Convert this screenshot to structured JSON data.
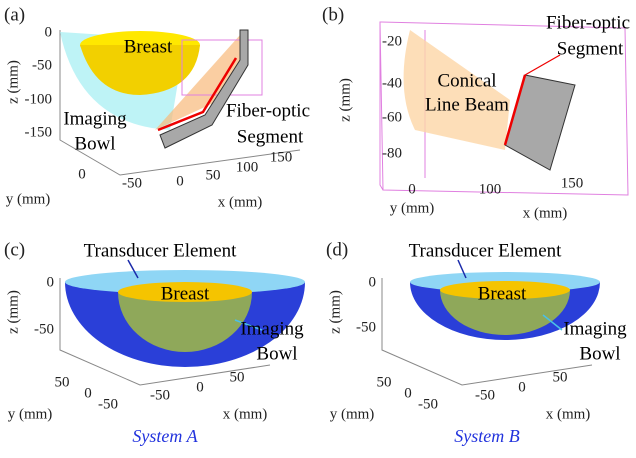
{
  "panels": [
    {
      "label": "(a)",
      "annotations": {
        "breast": "Breast",
        "bowl": [
          "Imaging",
          "Bowl"
        ],
        "segment": [
          "Fiber-optic",
          "Segment"
        ]
      },
      "z_label": "z (mm)",
      "z_ticks": [
        0,
        -50,
        -100,
        -150
      ],
      "y_label": "y (mm)",
      "y_ticks": [
        0
      ],
      "x_label": "x (mm)",
      "x_ticks": [
        -50,
        0,
        50,
        100,
        150
      ]
    },
    {
      "label": "(b)",
      "annotations": {
        "beam": [
          "Conical",
          "Line Beam"
        ],
        "segment": [
          "Fiber-optic",
          "Segment"
        ]
      },
      "z_label": "z (mm)",
      "z_ticks": [
        -20,
        -40,
        -60,
        -80
      ],
      "y_label": "y (mm)",
      "y_ticks": [
        0
      ],
      "x_label": "x (mm)",
      "x_ticks": [
        100,
        150
      ]
    },
    {
      "label": "(c)",
      "annotations": {
        "element": "Transducer Element",
        "breast": "Breast",
        "bowl": [
          "Imaging",
          "Bowl"
        ]
      },
      "z_label": "z (mm)",
      "z_ticks": [
        0,
        -50
      ],
      "y_label": "y (mm)",
      "y_ticks": [
        50,
        0,
        -50
      ],
      "x_label": "x (mm)",
      "x_ticks": [
        -50,
        0,
        50
      ],
      "caption": "System A"
    },
    {
      "label": "(d)",
      "annotations": {
        "element": "Transducer Element",
        "breast": "Breast",
        "bowl": [
          "Imaging",
          "Bowl"
        ]
      },
      "z_label": "z (mm)",
      "z_ticks": [
        0,
        -50
      ],
      "y_label": "y (mm)",
      "y_ticks": [
        50,
        0,
        -50
      ],
      "x_label": "x (mm)",
      "x_ticks": [
        -50,
        0,
        50
      ],
      "caption": "System B"
    }
  ]
}
